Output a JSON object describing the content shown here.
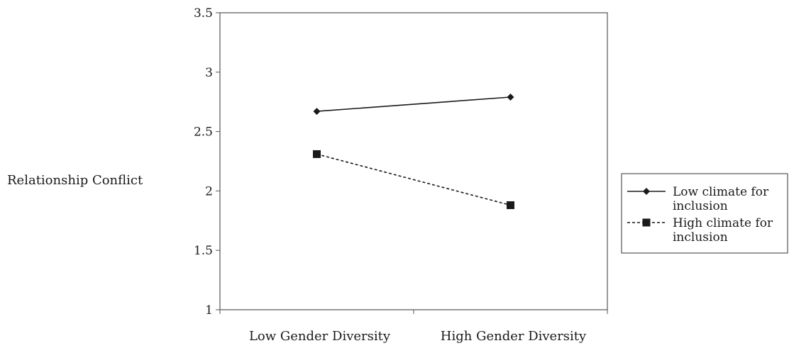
{
  "chart_data": {
    "type": "line",
    "title": "",
    "xlabel": "",
    "ylabel": "Relationship Conflict",
    "categories": [
      "Low Gender Diversity",
      "High Gender Diversity"
    ],
    "ylim": [
      1,
      3.5
    ],
    "yticks": [
      1,
      1.5,
      2,
      2.5,
      3,
      3.5
    ],
    "ytick_labels": [
      "1",
      "1.5",
      "2",
      "2.5",
      "3",
      "3.5"
    ],
    "grid": false,
    "legend_position": "right",
    "series": [
      {
        "name": "Low climate for inclusion",
        "legend_lines": [
          "Low climate for",
          "inclusion"
        ],
        "values": [
          2.67,
          2.79
        ],
        "marker": "diamond",
        "line_style": "solid",
        "color": "#1a1a1a"
      },
      {
        "name": "High climate for inclusion",
        "legend_lines": [
          "High climate for",
          "inclusion"
        ],
        "values": [
          2.31,
          1.88
        ],
        "marker": "square",
        "line_style": "dashed",
        "color": "#1a1a1a"
      }
    ]
  }
}
